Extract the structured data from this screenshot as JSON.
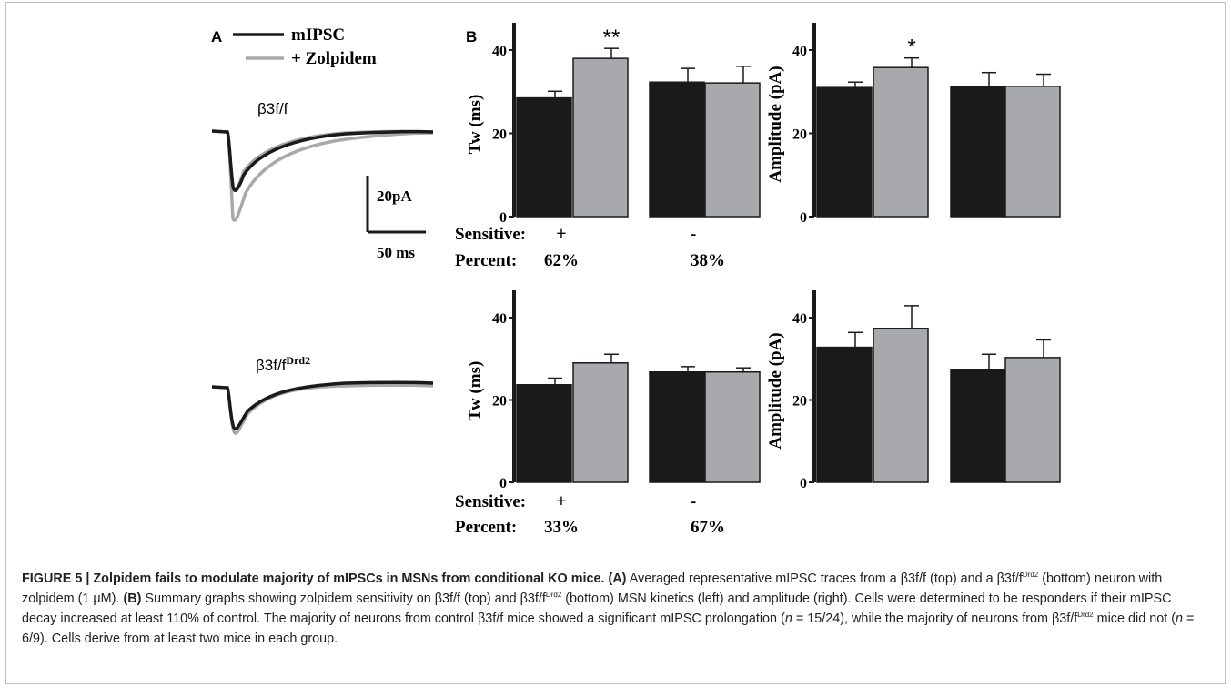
{
  "panel_a": {
    "label": "A",
    "legend": {
      "control": "mIPSC",
      "drug": "+ Zolpidem"
    },
    "genotype_top": "β3f/f",
    "genotype_bottom_base": "β3f/f",
    "genotype_bottom_sup": "Drd2",
    "scale_current": "20pA",
    "scale_time": "50 ms"
  },
  "panel_b_label": "B",
  "sensitive_label": "Sensitive:",
  "percent_label": "Percent:",
  "colors": {
    "control": "#1a1a1a",
    "zolpidem": "#a7a9ac"
  },
  "chart_data": [
    {
      "name": "top-tw",
      "type": "bar",
      "ylabel": "Tw (ms)",
      "ylim": [
        0,
        40
      ],
      "yticks": [
        0,
        20,
        40
      ],
      "categories": [
        "+",
        "-"
      ],
      "series": [
        {
          "name": "mIPSC",
          "values": [
            28.5,
            32.3
          ],
          "errors": [
            1.6,
            3.3
          ]
        },
        {
          "name": "+ Zolpidem",
          "values": [
            38.0,
            32.1
          ],
          "errors": [
            2.4,
            4.0
          ]
        }
      ],
      "significance": [
        "**",
        ""
      ],
      "percent": [
        "62%",
        "38%"
      ]
    },
    {
      "name": "top-amp",
      "type": "bar",
      "ylabel": "Amplitude (pA)",
      "ylim": [
        0,
        40
      ],
      "yticks": [
        0,
        20,
        40
      ],
      "categories": [
        "",
        ""
      ],
      "series": [
        {
          "name": "mIPSC",
          "values": [
            31.0,
            31.3
          ],
          "errors": [
            1.3,
            3.3
          ]
        },
        {
          "name": "+ Zolpidem",
          "values": [
            35.8,
            31.3
          ],
          "errors": [
            2.3,
            2.9
          ]
        }
      ],
      "significance": [
        "*",
        ""
      ]
    },
    {
      "name": "bottom-tw",
      "type": "bar",
      "ylabel": "Tw (ms)",
      "ylim": [
        0,
        40
      ],
      "yticks": [
        0,
        20,
        40
      ],
      "categories": [
        "+",
        "-"
      ],
      "series": [
        {
          "name": "mIPSC",
          "values": [
            23.7,
            26.8
          ],
          "errors": [
            1.6,
            1.3
          ]
        },
        {
          "name": "+ Zolpidem",
          "values": [
            29.0,
            26.8
          ],
          "errors": [
            2.1,
            1.0
          ]
        }
      ],
      "significance": [
        "",
        ""
      ],
      "percent": [
        "33%",
        "67%"
      ]
    },
    {
      "name": "bottom-amp",
      "type": "bar",
      "ylabel": "Amplitude (pA)",
      "ylim": [
        0,
        40
      ],
      "yticks": [
        0,
        20,
        40
      ],
      "categories": [
        "",
        ""
      ],
      "series": [
        {
          "name": "mIPSC",
          "values": [
            32.8,
            27.4
          ],
          "errors": [
            3.6,
            3.7
          ]
        },
        {
          "name": "+ Zolpidem",
          "values": [
            37.4,
            30.3
          ],
          "errors": [
            5.5,
            4.3
          ]
        }
      ],
      "significance": [
        "",
        ""
      ]
    }
  ],
  "caption": {
    "title": "FIGURE 5 | Zolpidem fails to modulate majority of mIPSCs in MSNs from conditional KO mice.",
    "a_label": "(A)",
    "a_text_1": " Averaged representative mIPSC traces from a β3f/f (top) and a β3f/f",
    "sup": "Drd2",
    "a_text_2": " (bottom) neuron with zolpidem (1 μM). ",
    "b_label": "(B)",
    "b_text_1": " Summary graphs showing zolpidem sensitivity on β3f/f (top) and β3f/f",
    "b_text_2": " (bottom) MSN kinetics (left) and amplitude (right). Cells were determined to be responders if their mIPSC decay increased at least 110% of control. The majority of neurons from control β3f/f mice showed a significant mIPSC prolongation (",
    "n1": "n",
    "b_text_3": " = 15/24), while the majority of neurons from β3f/f",
    "b_text_4": " mice did not (",
    "n2": "n",
    "b_text_5": " = 6/9). Cells derive from at least two mice in each group."
  }
}
